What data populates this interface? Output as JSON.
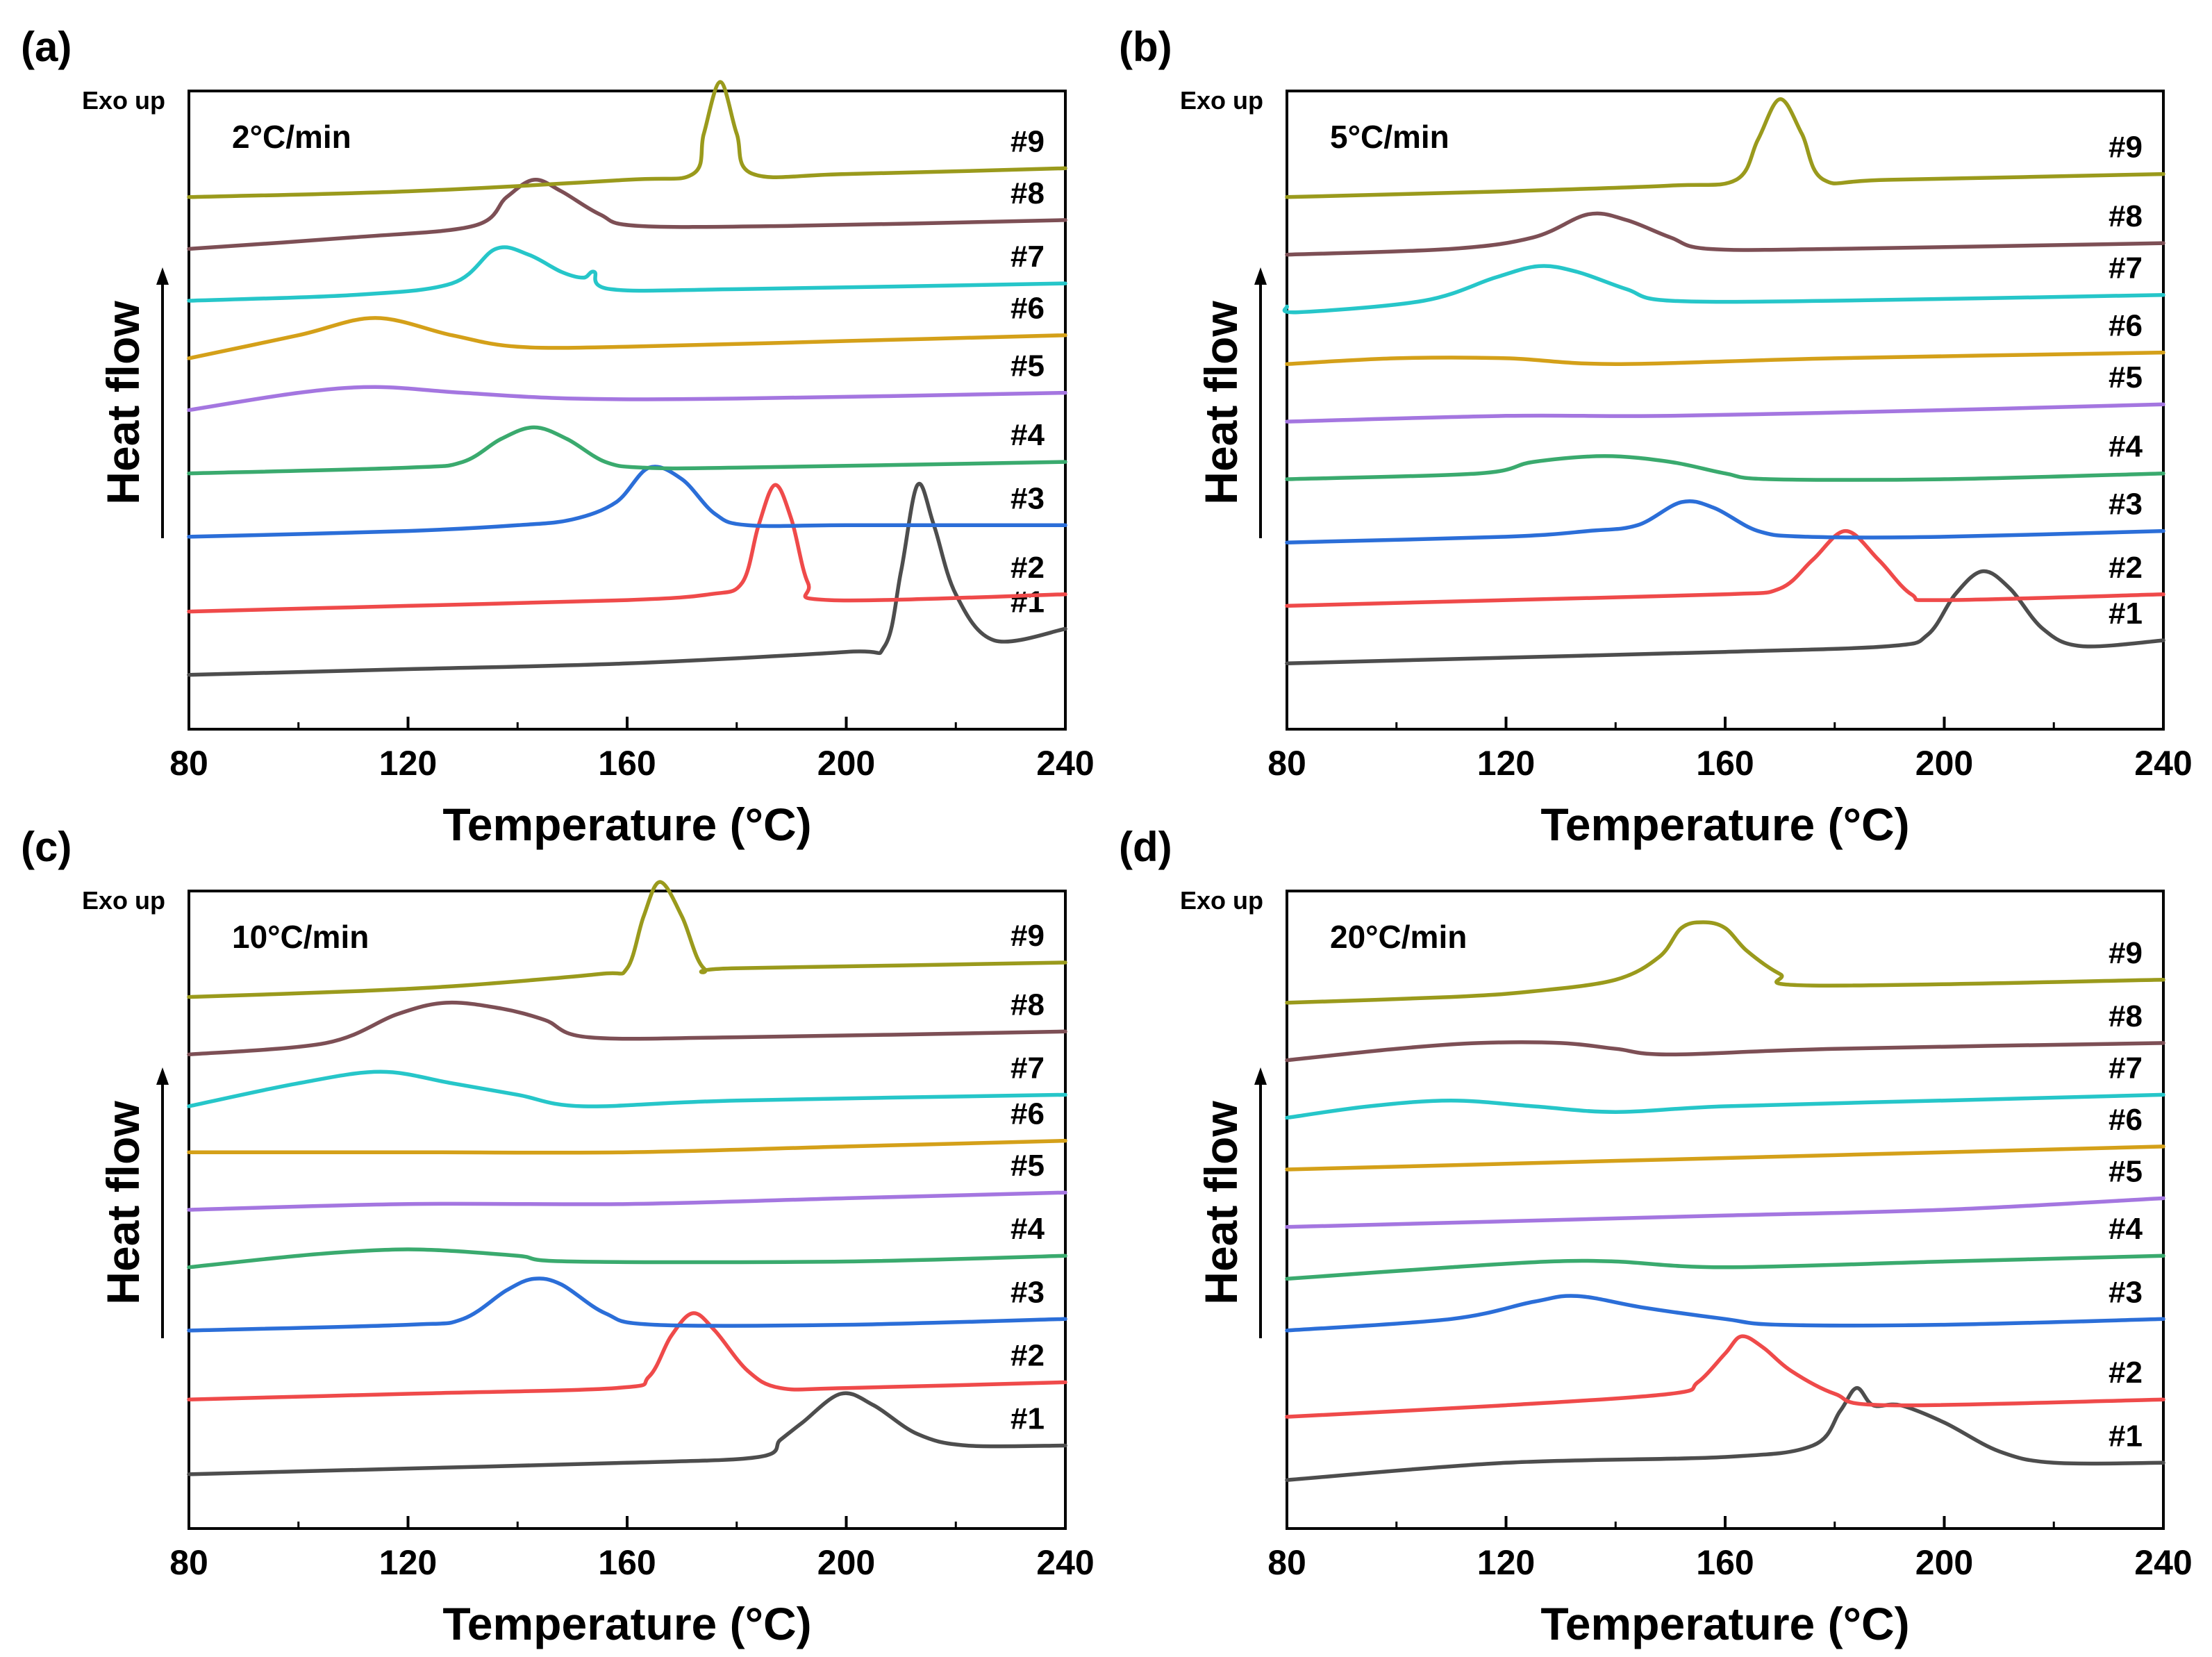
{
  "chart_data": [
    {
      "panel": "(a)",
      "type": "line",
      "annotation": "2°C/min",
      "exo_label": "Exo up",
      "xlabel": "Temperature (°C)",
      "ylabel": "Heat flow",
      "xlim": [
        80,
        240
      ],
      "xticks": [
        "80",
        "120",
        "160",
        "200",
        "240"
      ],
      "y_units": "stacked curves, arbitrary heat-flow units (0 = lowest baseline, 100 = top)",
      "series": [
        {
          "name": "#1",
          "color": "#4d4d4d",
          "x": [
            80,
            120,
            160,
            200,
            207,
            210,
            213,
            216,
            220,
            227,
            240
          ],
          "y": [
            4,
            5,
            6,
            8,
            9,
            22,
            37,
            30,
            18,
            10,
            12
          ]
        },
        {
          "name": "#2",
          "color": "#ef4a4a",
          "x": [
            80,
            120,
            160,
            175,
            181,
            184,
            187,
            190,
            193,
            197,
            240
          ],
          "y": [
            15,
            16,
            17,
            18,
            20,
            30,
            37,
            31,
            20,
            17,
            18
          ]
        },
        {
          "name": "#3",
          "color": "#2b6ed8",
          "x": [
            80,
            120,
            140,
            150,
            158,
            164,
            170,
            176,
            182,
            200,
            240
          ],
          "y": [
            28,
            29,
            30,
            31,
            34,
            40,
            38,
            32,
            30,
            30,
            30
          ]
        },
        {
          "name": "#4",
          "color": "#3aaa6e",
          "x": [
            80,
            120,
            130,
            137,
            143,
            149,
            156,
            163,
            180,
            240
          ],
          "y": [
            39,
            40,
            41,
            45,
            47,
            45,
            41,
            40,
            40,
            41
          ]
        },
        {
          "name": "#5",
          "color": "#a476e0",
          "x": [
            80,
            100,
            114,
            130,
            150,
            180,
            240
          ],
          "y": [
            50,
            53,
            54,
            53,
            52,
            52,
            53
          ]
        },
        {
          "name": "#6",
          "color": "#d4a019",
          "x": [
            80,
            100,
            114,
            128,
            140,
            160,
            200,
            240
          ],
          "y": [
            59,
            63,
            66,
            63,
            61,
            61,
            62,
            63
          ]
        },
        {
          "name": "#7",
          "color": "#26c6c9",
          "x": [
            80,
            110,
            128,
            136,
            142,
            148,
            152,
            154,
            157,
            180,
            240
          ],
          "y": [
            69,
            70,
            72,
            78,
            77,
            74,
            73,
            74,
            71,
            71,
            72
          ]
        },
        {
          "name": "#8",
          "color": "#7d4f55",
          "x": [
            80,
            110,
            132,
            138,
            143,
            148,
            155,
            162,
            190,
            240
          ],
          "y": [
            78,
            80,
            82,
            87,
            90,
            88,
            84,
            82,
            82,
            83
          ]
        },
        {
          "name": "#9",
          "color": "#9a9a1c",
          "x": [
            80,
            120,
            160,
            172,
            174,
            177,
            180,
            183,
            200,
            240
          ],
          "y": [
            87,
            88,
            90,
            91,
            98,
            107,
            98,
            91,
            91,
            92
          ]
        }
      ]
    },
    {
      "panel": "(b)",
      "type": "line",
      "annotation": "5°C/min",
      "exo_label": "Exo up",
      "xlabel": "Temperature (°C)",
      "ylabel": "Heat flow",
      "xlim": [
        80,
        240
      ],
      "xticks": [
        "80",
        "120",
        "160",
        "200",
        "240"
      ],
      "y_units": "stacked curves, arbitrary heat-flow units (0 = lowest baseline, 100 = top)",
      "series": [
        {
          "name": "#1",
          "color": "#4d4d4d",
          "x": [
            80,
            120,
            160,
            190,
            197,
            202,
            207,
            212,
            218,
            225,
            240
          ],
          "y": [
            6,
            7,
            8,
            9,
            11,
            18,
            22,
            19,
            12,
            9,
            10
          ]
        },
        {
          "name": "#2",
          "color": "#ef4a4a",
          "x": [
            80,
            120,
            160,
            170,
            176,
            182,
            188,
            194,
            200,
            240
          ],
          "y": [
            16,
            17,
            18,
            19,
            24,
            29,
            24,
            18,
            17,
            18
          ]
        },
        {
          "name": "#3",
          "color": "#2b6ed8",
          "x": [
            80,
            120,
            135,
            144,
            152,
            158,
            166,
            175,
            200,
            240
          ],
          "y": [
            27,
            28,
            29,
            30,
            34,
            33,
            29,
            28,
            28,
            29
          ]
        },
        {
          "name": "#4",
          "color": "#3aaa6e",
          "x": [
            80,
            115,
            125,
            138,
            150,
            160,
            168,
            200,
            240
          ],
          "y": [
            38,
            39,
            41,
            42,
            41,
            39,
            38,
            38,
            39
          ]
        },
        {
          "name": "#5",
          "color": "#a476e0",
          "x": [
            80,
            120,
            150,
            200,
            240
          ],
          "y": [
            48,
            49,
            49,
            50,
            51
          ]
        },
        {
          "name": "#6",
          "color": "#d4a019",
          "x": [
            80,
            100,
            120,
            140,
            180,
            240
          ],
          "y": [
            58,
            59,
            59,
            58,
            59,
            60
          ]
        },
        {
          "name": "#7",
          "color": "#26c6c9",
          "x": [
            80,
            82,
            105,
            118,
            126,
            133,
            142,
            150,
            180,
            240
          ],
          "y": [
            68,
            67,
            69,
            73,
            75,
            74,
            71,
            69,
            69,
            70
          ]
        },
        {
          "name": "#8",
          "color": "#7d4f55",
          "x": [
            80,
            110,
            125,
            135,
            142,
            150,
            157,
            180,
            240
          ],
          "y": [
            77,
            78,
            80,
            84,
            83,
            80,
            78,
            78,
            79
          ]
        },
        {
          "name": "#9",
          "color": "#9a9a1c",
          "x": [
            80,
            120,
            150,
            162,
            166,
            170,
            174,
            178,
            190,
            240
          ],
          "y": [
            87,
            88,
            89,
            90,
            97,
            104,
            98,
            90,
            90,
            91
          ]
        }
      ]
    },
    {
      "panel": "(c)",
      "type": "line",
      "annotation": "10°C/min",
      "exo_label": "Exo up",
      "xlabel": "Temperature (°C)",
      "ylabel": "Heat flow",
      "xlim": [
        80,
        240
      ],
      "xticks": [
        "80",
        "120",
        "160",
        "200",
        "240"
      ],
      "y_units": "stacked curves, arbitrary heat-flow units (0 = lowest baseline, 100 = top)",
      "series": [
        {
          "name": "#1",
          "color": "#4d4d4d",
          "x": [
            80,
            120,
            160,
            184,
            188,
            192,
            199,
            205,
            213,
            222,
            240
          ],
          "y": [
            4,
            5,
            6,
            7,
            10,
            13,
            18,
            16,
            11,
            9,
            9
          ]
        },
        {
          "name": "#2",
          "color": "#ef4a4a",
          "x": [
            80,
            120,
            158,
            164,
            168,
            172,
            176,
            182,
            188,
            200,
            240
          ],
          "y": [
            17,
            18,
            19,
            21,
            28,
            32,
            29,
            22,
            19,
            19,
            20
          ]
        },
        {
          "name": "#3",
          "color": "#2b6ed8",
          "x": [
            80,
            120,
            130,
            138,
            143,
            148,
            156,
            165,
            200,
            240
          ],
          "y": [
            29,
            30,
            31,
            36,
            38,
            37,
            32,
            30,
            30,
            31
          ]
        },
        {
          "name": "#4",
          "color": "#3aaa6e",
          "x": [
            80,
            100,
            115,
            125,
            140,
            150,
            200,
            240
          ],
          "y": [
            40,
            42,
            43,
            43,
            42,
            41,
            41,
            42
          ]
        },
        {
          "name": "#5",
          "color": "#a476e0",
          "x": [
            80,
            120,
            160,
            200,
            240
          ],
          "y": [
            50,
            51,
            51,
            52,
            53
          ]
        },
        {
          "name": "#6",
          "color": "#d4a019",
          "x": [
            80,
            120,
            160,
            200,
            240
          ],
          "y": [
            60,
            60,
            60,
            61,
            62
          ]
        },
        {
          "name": "#7",
          "color": "#26c6c9",
          "x": [
            80,
            100,
            115,
            128,
            140,
            152,
            180,
            240
          ],
          "y": [
            68,
            72,
            74,
            72,
            70,
            68,
            69,
            70
          ]
        },
        {
          "name": "#8",
          "color": "#7d4f55",
          "x": [
            80,
            105,
            118,
            127,
            137,
            145,
            153,
            180,
            240
          ],
          "y": [
            77,
            79,
            84,
            86,
            85,
            83,
            80,
            80,
            81
          ]
        },
        {
          "name": "#9",
          "color": "#9a9a1c",
          "x": [
            80,
            110,
            130,
            155,
            160,
            163,
            166,
            170,
            174,
            180,
            240
          ],
          "y": [
            87,
            88,
            89,
            91,
            92,
            101,
            107,
            101,
            92,
            92,
            93
          ]
        }
      ]
    },
    {
      "panel": "(d)",
      "type": "line",
      "annotation": "20°C/min",
      "exo_label": "Exo up",
      "xlabel": "Temperature (°C)",
      "ylabel": "Heat flow",
      "xlim": [
        80,
        240
      ],
      "xticks": [
        "80",
        "120",
        "160",
        "200",
        "240"
      ],
      "y_units": "stacked curves, arbitrary heat-flow units (0 = lowest baseline, 100 = top)",
      "series": [
        {
          "name": "#1",
          "color": "#4d4d4d",
          "x": [
            80,
            120,
            160,
            176,
            181,
            184,
            187,
            192,
            200,
            210,
            220,
            240
          ],
          "y": [
            3,
            6,
            7,
            9,
            15,
            19,
            16,
            16,
            13,
            8,
            6,
            6
          ]
        },
        {
          "name": "#2",
          "color": "#ef4a4a",
          "x": [
            80,
            120,
            150,
            155,
            160,
            163,
            167,
            172,
            180,
            190,
            240
          ],
          "y": [
            14,
            16,
            18,
            20,
            25,
            28,
            26,
            22,
            18,
            16,
            17
          ]
        },
        {
          "name": "#3",
          "color": "#2b6ed8",
          "x": [
            80,
            110,
            125,
            133,
            145,
            160,
            170,
            200,
            240
          ],
          "y": [
            29,
            31,
            34,
            35,
            33,
            31,
            30,
            30,
            31
          ]
        },
        {
          "name": "#4",
          "color": "#3aaa6e",
          "x": [
            80,
            110,
            128,
            140,
            160,
            200,
            240
          ],
          "y": [
            38,
            40,
            41,
            41,
            40,
            41,
            42
          ]
        },
        {
          "name": "#5",
          "color": "#a476e0",
          "x": [
            80,
            120,
            160,
            200,
            240
          ],
          "y": [
            47,
            48,
            49,
            50,
            52
          ]
        },
        {
          "name": "#6",
          "color": "#d4a019",
          "x": [
            80,
            120,
            160,
            200,
            240
          ],
          "y": [
            57,
            58,
            59,
            60,
            61
          ]
        },
        {
          "name": "#7",
          "color": "#26c6c9",
          "x": [
            80,
            95,
            110,
            125,
            140,
            160,
            200,
            240
          ],
          "y": [
            66,
            68,
            69,
            68,
            67,
            68,
            69,
            70
          ]
        },
        {
          "name": "#8",
          "color": "#7d4f55",
          "x": [
            80,
            100,
            115,
            130,
            140,
            150,
            180,
            240
          ],
          "y": [
            76,
            78,
            79,
            79,
            78,
            77,
            78,
            79
          ]
        },
        {
          "name": "#9",
          "color": "#9a9a1c",
          "x": [
            80,
            110,
            125,
            140,
            148,
            152,
            156,
            160,
            164,
            170,
            176,
            240
          ],
          "y": [
            86,
            87,
            88,
            90,
            94,
            99,
            100,
            99,
            95,
            91,
            89,
            90
          ]
        }
      ]
    }
  ]
}
